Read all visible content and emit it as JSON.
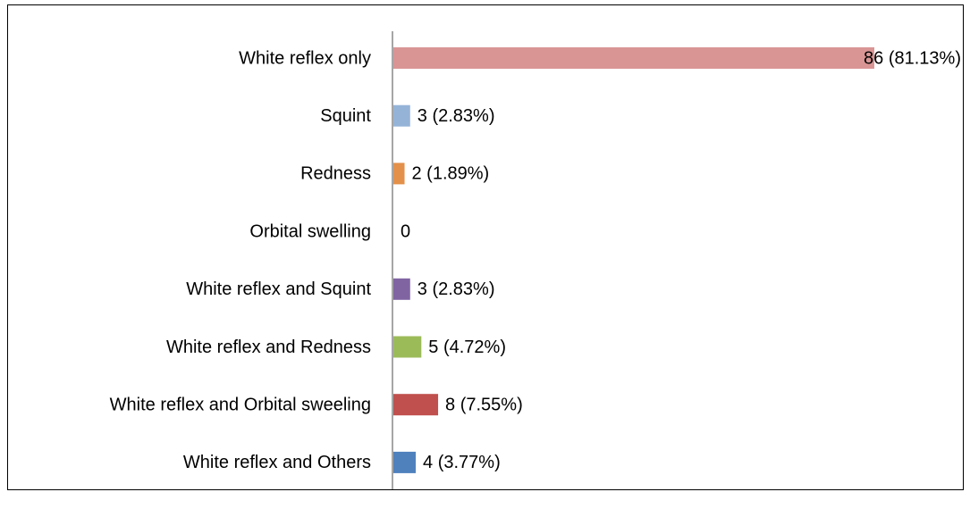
{
  "chart_data": {
    "type": "bar",
    "orientation": "horizontal",
    "categories": [
      "White reflex only",
      "Squint",
      "Redness",
      "Orbital swelling",
      "White reflex and Squint",
      "White reflex and Redness",
      "White reflex and Orbital sweeling",
      "White reflex and Others"
    ],
    "values": [
      86,
      3,
      2,
      0,
      3,
      5,
      8,
      4
    ],
    "value_labels": [
      "86 (81.13%)",
      "3 (2.83%)",
      "2 (1.89%)",
      "0",
      "3 (2.83%)",
      "5 (4.72%)",
      "8 (7.55%)",
      "4 (3.77%)"
    ],
    "colors": [
      "#d99594",
      "#95b3d7",
      "#e3904a",
      "#1f497d",
      "#8064a2",
      "#9bbb59",
      "#c0504d",
      "#4f81bd"
    ]
  }
}
